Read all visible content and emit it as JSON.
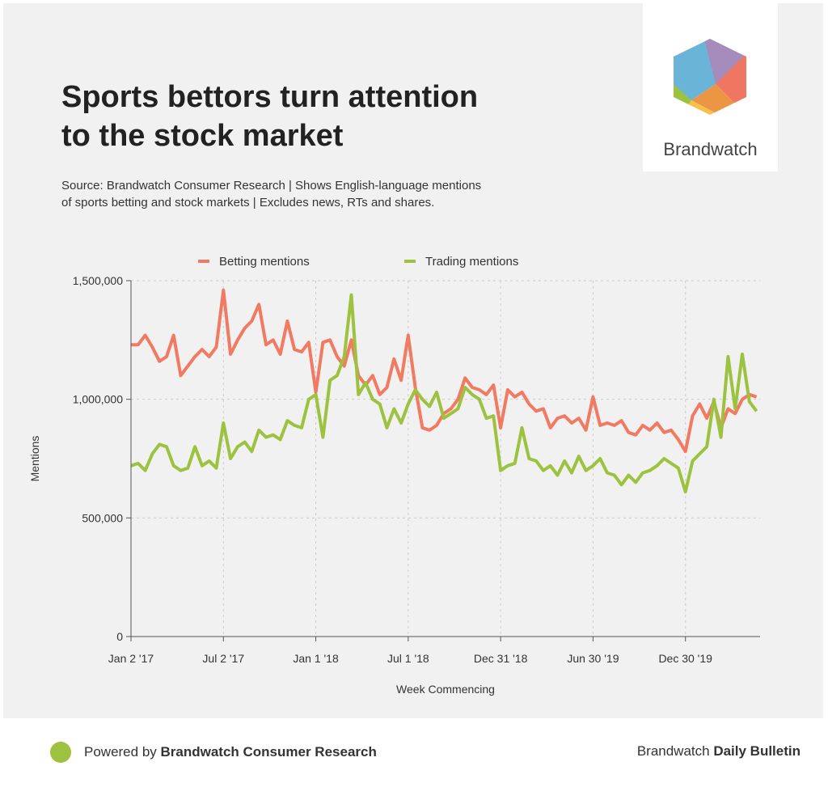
{
  "title_line1": "Sports bettors turn attention",
  "title_line2": "to the stock market",
  "subtitle_line1": "Source: Brandwatch Consumer Research | Shows English-language mentions",
  "subtitle_line2": "of sports betting and stock markets | Excludes news, RTs and shares.",
  "logo_text": "Brandwatch",
  "logo_colors": [
    "#6ab4d8",
    "#a58cbc",
    "#ef7762",
    "#ec9544",
    "#f6c14b",
    "#9dc23f"
  ],
  "footer": {
    "powered_prefix": "Powered by ",
    "powered_brand": "Brandwatch Consumer Research",
    "bulletin_prefix": "Brandwatch ",
    "bulletin_brand": "Daily Bulletin"
  },
  "chart_data": {
    "type": "line",
    "xlabel": "Week Commencing",
    "ylabel": "Mentions",
    "ylim": [
      0,
      1500000
    ],
    "yticks": [
      {
        "v": 0,
        "label": "0"
      },
      {
        "v": 500000,
        "label": "500,000"
      },
      {
        "v": 1000000,
        "label": "1,000,000"
      },
      {
        "v": 1500000,
        "label": "1,500,000"
      }
    ],
    "xlim_weeks": [
      0,
      177
    ],
    "xticks": [
      {
        "w": 0,
        "label": "Jan 2 '17"
      },
      {
        "w": 26,
        "label": "Jul 2 '17"
      },
      {
        "w": 52,
        "label": "Jan 1 '18"
      },
      {
        "w": 78,
        "label": "Jul 1 '18"
      },
      {
        "w": 104,
        "label": "Dec 31 '18"
      },
      {
        "w": 130,
        "label": "Jun 30 '19"
      },
      {
        "w": 156,
        "label": "Dec 30 '19"
      }
    ],
    "x_step_weeks": 2,
    "grid": true,
    "legend_position": "top",
    "series": [
      {
        "name": "Betting mentions",
        "color": "#f07a62",
        "values_thousands": [
          1230,
          1230,
          1270,
          1220,
          1160,
          1180,
          1270,
          1100,
          1140,
          1180,
          1210,
          1180,
          1220,
          1460,
          1190,
          1250,
          1300,
          1330,
          1400,
          1230,
          1250,
          1190,
          1330,
          1210,
          1200,
          1240,
          1030,
          1240,
          1250,
          1180,
          1140,
          1250,
          1100,
          1060,
          1100,
          1020,
          1050,
          1170,
          1080,
          1270,
          1050,
          880,
          870,
          890,
          940,
          960,
          1000,
          1090,
          1050,
          1040,
          1020,
          1060,
          880,
          1040,
          1010,
          1030,
          980,
          950,
          960,
          880,
          920,
          930,
          900,
          920,
          870,
          1010,
          890,
          900,
          890,
          910,
          860,
          850,
          890,
          870,
          900,
          860,
          870,
          830,
          780,
          930,
          980,
          920,
          990,
          880,
          960,
          940,
          1000,
          1020,
          1010
        ]
      },
      {
        "name": "Trading mentions",
        "color": "#9dc23f",
        "values_thousands": [
          720,
          730,
          700,
          770,
          810,
          800,
          720,
          700,
          710,
          800,
          720,
          740,
          710,
          900,
          750,
          800,
          820,
          780,
          870,
          840,
          850,
          830,
          910,
          890,
          880,
          1000,
          1020,
          840,
          1080,
          1100,
          1180,
          1440,
          1020,
          1070,
          1000,
          980,
          880,
          960,
          900,
          980,
          1040,
          1000,
          970,
          1030,
          920,
          940,
          960,
          1050,
          1020,
          1000,
          920,
          930,
          700,
          720,
          730,
          880,
          750,
          740,
          700,
          720,
          680,
          740,
          690,
          760,
          700,
          720,
          750,
          690,
          680,
          640,
          680,
          650,
          690,
          700,
          720,
          750,
          730,
          710,
          610,
          740,
          770,
          800,
          1000,
          840,
          1180,
          960,
          1190,
          990,
          950
        ]
      }
    ]
  }
}
